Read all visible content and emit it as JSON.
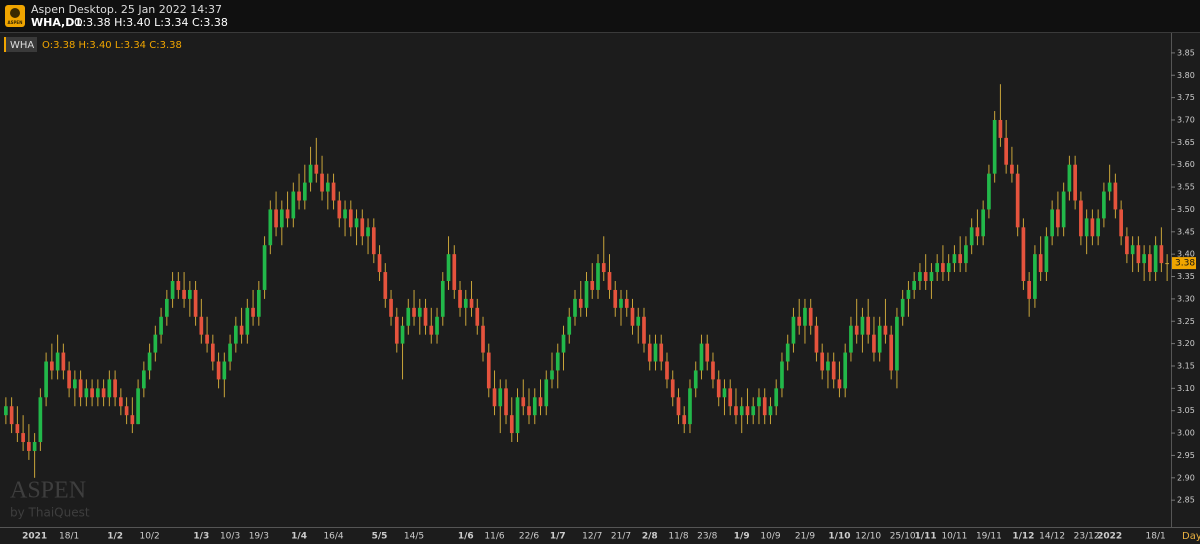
{
  "header": {
    "logo": "ASPEN",
    "app": "Aspen Desktop. 25 Jan 2022 14:37",
    "symbol": "WHA,D1",
    "quote": "O:3.38 H:3.40 L:3.34 C:3.38"
  },
  "watermark": {
    "brand": "ASPEN",
    "by": "by ThaiQuest"
  },
  "chart_data": {
    "type": "candlestick",
    "title": "WHA",
    "legend_text": "O:3.38 H:3.40 L:3.34 C:3.38",
    "x_unit": "Day",
    "up_color": "#22b84a",
    "down_color": "#e5533d",
    "wick_color": "#c9a53a",
    "grid": false,
    "ylim": [
      2.79,
      3.89
    ],
    "yticks": [
      2.85,
      {
        "value": 2.9,
        "label": "2.90"
      },
      2.95,
      {
        "value": 3,
        "label": "3.00"
      },
      3.05,
      {
        "value": 3.1,
        "label": "3.10"
      },
      3.15,
      {
        "value": 3.2,
        "label": "3.20"
      },
      3.25,
      {
        "value": 3.3,
        "label": "3.30"
      },
      3.35,
      {
        "value": 3.4,
        "label": "3.40"
      },
      3.45,
      {
        "value": 3.5,
        "label": "3.50"
      },
      3.55,
      {
        "value": 3.6,
        "label": "3.60"
      },
      3.65,
      {
        "value": 3.7,
        "label": "3.70"
      },
      3.75,
      {
        "value": 3.8,
        "label": "3.80"
      },
      3.85
    ],
    "categories": [
      null,
      null,
      null,
      null,
      null,
      "2021",
      null,
      null,
      null,
      null,
      null,
      "18/1",
      null,
      null,
      null,
      null,
      null,
      null,
      null,
      "1/2",
      null,
      null,
      null,
      null,
      null,
      "10/2",
      null,
      null,
      null,
      null,
      null,
      null,
      null,
      null,
      "1/3",
      null,
      null,
      null,
      null,
      "10/3",
      null,
      null,
      null,
      null,
      "19/3",
      null,
      null,
      null,
      null,
      null,
      null,
      "1/4",
      null,
      null,
      null,
      null,
      null,
      "16/4",
      null,
      null,
      null,
      null,
      null,
      null,
      null,
      "5/5",
      null,
      null,
      null,
      null,
      null,
      "14/5",
      null,
      null,
      null,
      null,
      null,
      null,
      null,
      null,
      "1/6",
      null,
      null,
      null,
      null,
      "11/6",
      null,
      null,
      null,
      null,
      null,
      "22/6",
      null,
      null,
      null,
      null,
      "1/7",
      null,
      null,
      null,
      null,
      null,
      "12/7",
      null,
      null,
      null,
      null,
      "21/7",
      null,
      null,
      null,
      null,
      "2/8",
      null,
      null,
      null,
      null,
      "11/8",
      null,
      null,
      null,
      null,
      "23/8",
      null,
      null,
      null,
      null,
      null,
      "1/9",
      null,
      null,
      null,
      null,
      "10/9",
      null,
      null,
      null,
      null,
      null,
      "21/9",
      null,
      null,
      null,
      null,
      null,
      "1/10",
      null,
      null,
      null,
      null,
      "12/10",
      null,
      null,
      null,
      null,
      null,
      "25/10",
      null,
      null,
      null,
      "1/11",
      null,
      null,
      null,
      null,
      "10/11",
      null,
      null,
      null,
      null,
      null,
      "19/11",
      null,
      null,
      null,
      null,
      null,
      "1/12",
      null,
      null,
      null,
      null,
      "14/12",
      null,
      null,
      null,
      null,
      null,
      "23/12",
      null,
      null,
      null,
      "2022",
      null,
      null,
      null,
      null,
      null,
      null,
      null,
      "18/1",
      null,
      null
    ],
    "ohlc": [
      [
        3.04,
        3.08,
        3.02,
        3.06
      ],
      [
        3.06,
        3.08,
        3.0,
        3.02
      ],
      [
        3.02,
        3.06,
        2.98,
        3.0
      ],
      [
        3.0,
        3.04,
        2.96,
        2.98
      ],
      [
        2.98,
        3.02,
        2.94,
        2.96
      ],
      [
        2.96,
        3.0,
        2.9,
        2.98
      ],
      [
        2.98,
        3.1,
        2.96,
        3.08
      ],
      [
        3.08,
        3.18,
        3.06,
        3.16
      ],
      [
        3.16,
        3.2,
        3.12,
        3.14
      ],
      [
        3.14,
        3.22,
        3.12,
        3.18
      ],
      [
        3.18,
        3.2,
        3.12,
        3.14
      ],
      [
        3.14,
        3.16,
        3.08,
        3.1
      ],
      [
        3.1,
        3.14,
        3.06,
        3.12
      ],
      [
        3.12,
        3.14,
        3.06,
        3.08
      ],
      [
        3.08,
        3.12,
        3.06,
        3.1
      ],
      [
        3.1,
        3.12,
        3.06,
        3.08
      ],
      [
        3.08,
        3.12,
        3.06,
        3.1
      ],
      [
        3.1,
        3.12,
        3.06,
        3.08
      ],
      [
        3.08,
        3.14,
        3.06,
        3.12
      ],
      [
        3.12,
        3.14,
        3.06,
        3.08
      ],
      [
        3.08,
        3.1,
        3.04,
        3.06
      ],
      [
        3.06,
        3.08,
        3.02,
        3.04
      ],
      [
        3.04,
        3.08,
        3.0,
        3.02
      ],
      [
        3.02,
        3.12,
        3.02,
        3.1
      ],
      [
        3.1,
        3.16,
        3.08,
        3.14
      ],
      [
        3.14,
        3.2,
        3.12,
        3.18
      ],
      [
        3.18,
        3.24,
        3.16,
        3.22
      ],
      [
        3.22,
        3.28,
        3.2,
        3.26
      ],
      [
        3.26,
        3.32,
        3.24,
        3.3
      ],
      [
        3.3,
        3.36,
        3.28,
        3.34
      ],
      [
        3.34,
        3.36,
        3.3,
        3.32
      ],
      [
        3.32,
        3.36,
        3.28,
        3.3
      ],
      [
        3.3,
        3.34,
        3.26,
        3.32
      ],
      [
        3.32,
        3.34,
        3.24,
        3.26
      ],
      [
        3.26,
        3.3,
        3.2,
        3.22
      ],
      [
        3.22,
        3.26,
        3.18,
        3.2
      ],
      [
        3.2,
        3.22,
        3.14,
        3.16
      ],
      [
        3.16,
        3.18,
        3.1,
        3.12
      ],
      [
        3.12,
        3.18,
        3.08,
        3.16
      ],
      [
        3.16,
        3.22,
        3.14,
        3.2
      ],
      [
        3.2,
        3.26,
        3.18,
        3.24
      ],
      [
        3.24,
        3.28,
        3.2,
        3.22
      ],
      [
        3.22,
        3.3,
        3.2,
        3.28
      ],
      [
        3.28,
        3.32,
        3.24,
        3.26
      ],
      [
        3.26,
        3.34,
        3.24,
        3.32
      ],
      [
        3.32,
        3.44,
        3.3,
        3.42
      ],
      [
        3.42,
        3.52,
        3.4,
        3.5
      ],
      [
        3.5,
        3.54,
        3.44,
        3.46
      ],
      [
        3.46,
        3.52,
        3.42,
        3.5
      ],
      [
        3.5,
        3.54,
        3.46,
        3.48
      ],
      [
        3.48,
        3.56,
        3.46,
        3.54
      ],
      [
        3.54,
        3.58,
        3.5,
        3.52
      ],
      [
        3.52,
        3.6,
        3.5,
        3.56
      ],
      [
        3.56,
        3.64,
        3.54,
        3.6
      ],
      [
        3.6,
        3.66,
        3.56,
        3.58
      ],
      [
        3.58,
        3.62,
        3.52,
        3.54
      ],
      [
        3.54,
        3.58,
        3.5,
        3.56
      ],
      [
        3.56,
        3.58,
        3.5,
        3.52
      ],
      [
        3.52,
        3.54,
        3.46,
        3.48
      ],
      [
        3.48,
        3.52,
        3.44,
        3.5
      ],
      [
        3.5,
        3.52,
        3.44,
        3.46
      ],
      [
        3.46,
        3.5,
        3.42,
        3.48
      ],
      [
        3.48,
        3.5,
        3.42,
        3.44
      ],
      [
        3.44,
        3.48,
        3.4,
        3.46
      ],
      [
        3.46,
        3.48,
        3.38,
        3.4
      ],
      [
        3.4,
        3.42,
        3.34,
        3.36
      ],
      [
        3.36,
        3.38,
        3.28,
        3.3
      ],
      [
        3.3,
        3.32,
        3.24,
        3.26
      ],
      [
        3.26,
        3.28,
        3.18,
        3.2
      ],
      [
        3.2,
        3.26,
        3.12,
        3.24
      ],
      [
        3.24,
        3.3,
        3.22,
        3.28
      ],
      [
        3.28,
        3.32,
        3.24,
        3.26
      ],
      [
        3.26,
        3.3,
        3.22,
        3.28
      ],
      [
        3.28,
        3.3,
        3.22,
        3.24
      ],
      [
        3.24,
        3.28,
        3.2,
        3.22
      ],
      [
        3.22,
        3.28,
        3.2,
        3.26
      ],
      [
        3.26,
        3.36,
        3.24,
        3.34
      ],
      [
        3.34,
        3.44,
        3.32,
        3.4
      ],
      [
        3.4,
        3.42,
        3.3,
        3.32
      ],
      [
        3.32,
        3.34,
        3.26,
        3.28
      ],
      [
        3.28,
        3.32,
        3.24,
        3.3
      ],
      [
        3.3,
        3.34,
        3.26,
        3.28
      ],
      [
        3.28,
        3.3,
        3.22,
        3.24
      ],
      [
        3.24,
        3.26,
        3.16,
        3.18
      ],
      [
        3.18,
        3.2,
        3.08,
        3.1
      ],
      [
        3.1,
        3.14,
        3.04,
        3.06
      ],
      [
        3.06,
        3.12,
        3.0,
        3.1
      ],
      [
        3.1,
        3.12,
        3.02,
        3.04
      ],
      [
        3.04,
        3.08,
        2.98,
        3.0
      ],
      [
        3.0,
        3.1,
        2.98,
        3.08
      ],
      [
        3.08,
        3.12,
        3.04,
        3.06
      ],
      [
        3.06,
        3.1,
        3.02,
        3.04
      ],
      [
        3.04,
        3.1,
        3.02,
        3.08
      ],
      [
        3.08,
        3.12,
        3.04,
        3.06
      ],
      [
        3.06,
        3.14,
        3.04,
        3.12
      ],
      [
        3.12,
        3.18,
        3.1,
        3.14
      ],
      [
        3.14,
        3.2,
        3.1,
        3.18
      ],
      [
        3.18,
        3.24,
        3.14,
        3.22
      ],
      [
        3.22,
        3.28,
        3.2,
        3.26
      ],
      [
        3.26,
        3.32,
        3.24,
        3.3
      ],
      [
        3.3,
        3.34,
        3.26,
        3.28
      ],
      [
        3.28,
        3.36,
        3.26,
        3.34
      ],
      [
        3.34,
        3.38,
        3.3,
        3.32
      ],
      [
        3.32,
        3.4,
        3.3,
        3.38
      ],
      [
        3.38,
        3.44,
        3.34,
        3.36
      ],
      [
        3.36,
        3.4,
        3.3,
        3.32
      ],
      [
        3.32,
        3.34,
        3.26,
        3.28
      ],
      [
        3.28,
        3.32,
        3.24,
        3.3
      ],
      [
        3.3,
        3.32,
        3.26,
        3.28
      ],
      [
        3.28,
        3.3,
        3.22,
        3.24
      ],
      [
        3.24,
        3.28,
        3.2,
        3.26
      ],
      [
        3.26,
        3.28,
        3.18,
        3.2
      ],
      [
        3.2,
        3.22,
        3.14,
        3.16
      ],
      [
        3.16,
        3.22,
        3.14,
        3.2
      ],
      [
        3.2,
        3.22,
        3.14,
        3.16
      ],
      [
        3.16,
        3.18,
        3.1,
        3.12
      ],
      [
        3.12,
        3.14,
        3.06,
        3.08
      ],
      [
        3.08,
        3.1,
        3.02,
        3.04
      ],
      [
        3.04,
        3.06,
        3.0,
        3.02
      ],
      [
        3.02,
        3.12,
        3.0,
        3.1
      ],
      [
        3.1,
        3.16,
        3.08,
        3.14
      ],
      [
        3.14,
        3.22,
        3.12,
        3.2
      ],
      [
        3.2,
        3.22,
        3.14,
        3.16
      ],
      [
        3.16,
        3.18,
        3.1,
        3.12
      ],
      [
        3.12,
        3.14,
        3.06,
        3.08
      ],
      [
        3.08,
        3.12,
        3.04,
        3.1
      ],
      [
        3.1,
        3.12,
        3.04,
        3.06
      ],
      [
        3.06,
        3.1,
        3.02,
        3.04
      ],
      [
        3.04,
        3.08,
        3.0,
        3.06
      ],
      [
        3.06,
        3.1,
        3.02,
        3.04
      ],
      [
        3.04,
        3.08,
        3.02,
        3.06
      ],
      [
        3.06,
        3.1,
        3.02,
        3.08
      ],
      [
        3.08,
        3.1,
        3.02,
        3.04
      ],
      [
        3.04,
        3.08,
        3.02,
        3.06
      ],
      [
        3.06,
        3.12,
        3.04,
        3.1
      ],
      [
        3.1,
        3.18,
        3.08,
        3.16
      ],
      [
        3.16,
        3.22,
        3.14,
        3.2
      ],
      [
        3.2,
        3.28,
        3.18,
        3.26
      ],
      [
        3.26,
        3.3,
        3.22,
        3.24
      ],
      [
        3.24,
        3.3,
        3.2,
        3.28
      ],
      [
        3.28,
        3.3,
        3.22,
        3.24
      ],
      [
        3.24,
        3.26,
        3.16,
        3.18
      ],
      [
        3.18,
        3.2,
        3.12,
        3.14
      ],
      [
        3.14,
        3.18,
        3.1,
        3.16
      ],
      [
        3.16,
        3.18,
        3.1,
        3.12
      ],
      [
        3.12,
        3.16,
        3.08,
        3.1
      ],
      [
        3.1,
        3.2,
        3.08,
        3.18
      ],
      [
        3.18,
        3.26,
        3.16,
        3.24
      ],
      [
        3.24,
        3.3,
        3.2,
        3.22
      ],
      [
        3.22,
        3.28,
        3.18,
        3.26
      ],
      [
        3.26,
        3.3,
        3.2,
        3.22
      ],
      [
        3.22,
        3.26,
        3.16,
        3.18
      ],
      [
        3.18,
        3.26,
        3.16,
        3.24
      ],
      [
        3.24,
        3.3,
        3.2,
        3.22
      ],
      [
        3.22,
        3.24,
        3.12,
        3.14
      ],
      [
        3.14,
        3.28,
        3.1,
        3.26
      ],
      [
        3.26,
        3.32,
        3.24,
        3.3
      ],
      [
        3.3,
        3.34,
        3.26,
        3.32
      ],
      [
        3.32,
        3.36,
        3.3,
        3.34
      ],
      [
        3.34,
        3.38,
        3.32,
        3.36
      ],
      [
        3.36,
        3.4,
        3.32,
        3.34
      ],
      [
        3.34,
        3.38,
        3.3,
        3.36
      ],
      [
        3.36,
        3.4,
        3.34,
        3.38
      ],
      [
        3.38,
        3.42,
        3.34,
        3.36
      ],
      [
        3.36,
        3.4,
        3.34,
        3.38
      ],
      [
        3.38,
        3.42,
        3.36,
        3.4
      ],
      [
        3.4,
        3.44,
        3.36,
        3.38
      ],
      [
        3.38,
        3.44,
        3.36,
        3.42
      ],
      [
        3.42,
        3.48,
        3.4,
        3.46
      ],
      [
        3.46,
        3.5,
        3.42,
        3.44
      ],
      [
        3.44,
        3.52,
        3.42,
        3.5
      ],
      [
        3.5,
        3.6,
        3.48,
        3.58
      ],
      [
        3.58,
        3.72,
        3.56,
        3.7
      ],
      [
        3.7,
        3.78,
        3.64,
        3.66
      ],
      [
        3.66,
        3.7,
        3.58,
        3.6
      ],
      [
        3.6,
        3.64,
        3.56,
        3.58
      ],
      [
        3.58,
        3.6,
        3.44,
        3.46
      ],
      [
        3.46,
        3.48,
        3.32,
        3.34
      ],
      [
        3.34,
        3.36,
        3.26,
        3.3
      ],
      [
        3.3,
        3.42,
        3.28,
        3.4
      ],
      [
        3.4,
        3.44,
        3.34,
        3.36
      ],
      [
        3.36,
        3.46,
        3.34,
        3.44
      ],
      [
        3.44,
        3.52,
        3.42,
        3.5
      ],
      [
        3.5,
        3.54,
        3.44,
        3.46
      ],
      [
        3.46,
        3.56,
        3.44,
        3.54
      ],
      [
        3.54,
        3.62,
        3.52,
        3.6
      ],
      [
        3.6,
        3.62,
        3.5,
        3.52
      ],
      [
        3.52,
        3.54,
        3.42,
        3.44
      ],
      [
        3.44,
        3.5,
        3.4,
        3.48
      ],
      [
        3.48,
        3.5,
        3.42,
        3.44
      ],
      [
        3.44,
        3.5,
        3.42,
        3.48
      ],
      [
        3.48,
        3.56,
        3.46,
        3.54
      ],
      [
        3.54,
        3.6,
        3.52,
        3.56
      ],
      [
        3.56,
        3.58,
        3.48,
        3.5
      ],
      [
        3.5,
        3.52,
        3.42,
        3.44
      ],
      [
        3.44,
        3.46,
        3.38,
        3.4
      ],
      [
        3.4,
        3.44,
        3.36,
        3.42
      ],
      [
        3.42,
        3.44,
        3.36,
        3.38
      ],
      [
        3.38,
        3.42,
        3.34,
        3.4
      ],
      [
        3.4,
        3.42,
        3.34,
        3.36
      ],
      [
        3.36,
        3.44,
        3.34,
        3.42
      ],
      [
        3.42,
        3.46,
        3.36,
        3.38
      ],
      [
        3.38,
        3.4,
        3.34,
        3.38
      ]
    ]
  }
}
